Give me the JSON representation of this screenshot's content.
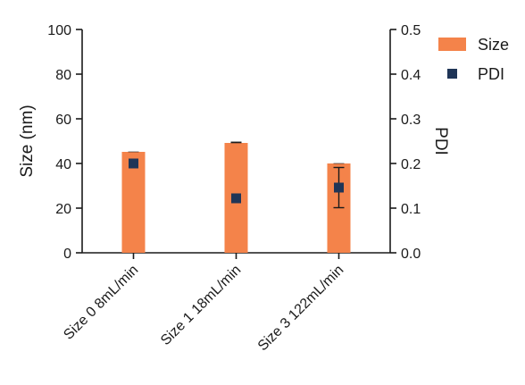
{
  "chart_data": {
    "type": "bar",
    "categories": [
      "Size 0 8mL/min",
      "Size 1 18mL/min",
      "Size 3 122mL/min"
    ],
    "series": [
      {
        "name": "Size",
        "axis": "left",
        "kind": "bar",
        "values": [
          45.2,
          49.2,
          40.0
        ],
        "error": [
          0.0,
          0.3,
          0.0
        ],
        "color": "#f4834a"
      },
      {
        "name": "PDI",
        "axis": "right",
        "kind": "point",
        "values": [
          0.2,
          0.122,
          0.146
        ],
        "error": [
          0.0,
          0.0,
          0.045
        ],
        "color": "#1f3557"
      }
    ],
    "ylabel": "Size (nm)",
    "y2label": "PDI",
    "ylim": [
      0,
      100
    ],
    "y2lim": [
      0,
      0.5
    ],
    "yticks": [
      "0",
      "20",
      "40",
      "60",
      "80",
      "100"
    ],
    "y2ticks": [
      "0.0",
      "0.1",
      "0.2",
      "0.3",
      "0.4",
      "0.5"
    ],
    "legend_position": "top-right",
    "grid": false
  }
}
